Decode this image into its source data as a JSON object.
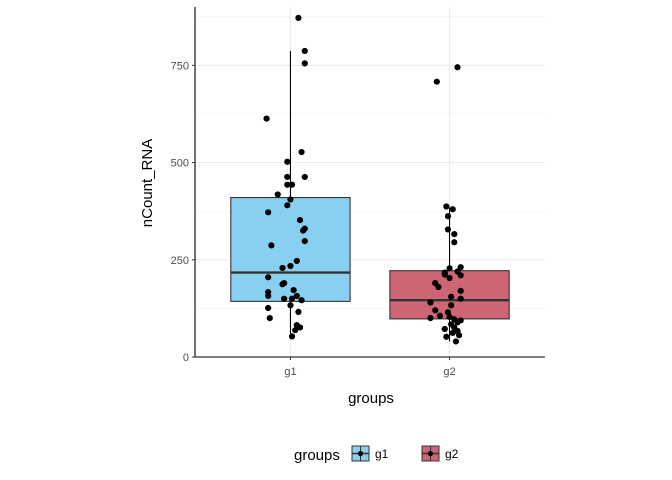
{
  "chart_data": {
    "type": "box",
    "xlabel": "groups",
    "ylabel": "nCount_RNA",
    "categories": [
      "g1",
      "g2"
    ],
    "ylim": [
      0,
      900
    ],
    "yticks": [
      0,
      250,
      500,
      750
    ],
    "grid": true,
    "legend": {
      "title": "groups",
      "position": "bottom",
      "entries": [
        {
          "label": "g1",
          "color": "#89CFF0"
        },
        {
          "label": "g2",
          "color": "#CD6574"
        }
      ]
    },
    "series": [
      {
        "category": "g1",
        "fill": "#89CFF0",
        "box": {
          "q1": 143,
          "median": 217,
          "q3": 410,
          "whisker_low": 53,
          "whisker_high": 787
        },
        "points": [
          {
            "x": 1.05,
            "y": 872
          },
          {
            "x": 1.09,
            "y": 787
          },
          {
            "x": 1.09,
            "y": 755
          },
          {
            "x": 0.85,
            "y": 613
          },
          {
            "x": 1.07,
            "y": 527
          },
          {
            "x": 0.98,
            "y": 502
          },
          {
            "x": 0.98,
            "y": 463
          },
          {
            "x": 1.09,
            "y": 463
          },
          {
            "x": 0.98,
            "y": 443
          },
          {
            "x": 1.01,
            "y": 443
          },
          {
            "x": 0.92,
            "y": 418
          },
          {
            "x": 1.0,
            "y": 405
          },
          {
            "x": 0.98,
            "y": 390
          },
          {
            "x": 0.86,
            "y": 372
          },
          {
            "x": 1.06,
            "y": 352
          },
          {
            "x": 1.09,
            "y": 330
          },
          {
            "x": 1.08,
            "y": 325
          },
          {
            "x": 1.09,
            "y": 298
          },
          {
            "x": 0.88,
            "y": 287
          },
          {
            "x": 1.04,
            "y": 247
          },
          {
            "x": 1.0,
            "y": 234
          },
          {
            "x": 0.95,
            "y": 229
          },
          {
            "x": 0.86,
            "y": 205
          },
          {
            "x": 0.96,
            "y": 190
          },
          {
            "x": 0.95,
            "y": 187
          },
          {
            "x": 1.02,
            "y": 172
          },
          {
            "x": 0.86,
            "y": 167
          },
          {
            "x": 0.86,
            "y": 157
          },
          {
            "x": 1.04,
            "y": 157
          },
          {
            "x": 0.96,
            "y": 150
          },
          {
            "x": 1.01,
            "y": 150
          },
          {
            "x": 1.07,
            "y": 146
          },
          {
            "x": 1.0,
            "y": 133
          },
          {
            "x": 0.86,
            "y": 126
          },
          {
            "x": 1.05,
            "y": 116
          },
          {
            "x": 0.87,
            "y": 100
          },
          {
            "x": 1.04,
            "y": 82
          },
          {
            "x": 1.06,
            "y": 76
          },
          {
            "x": 1.03,
            "y": 69
          },
          {
            "x": 1.01,
            "y": 53
          }
        ]
      },
      {
        "category": "g2",
        "fill": "#CD6574",
        "box": {
          "q1": 98,
          "median": 146,
          "q3": 222,
          "whisker_low": 40,
          "whisker_high": 384
        },
        "points": [
          {
            "x": 2.05,
            "y": 745
          },
          {
            "x": 1.92,
            "y": 708
          },
          {
            "x": 1.98,
            "y": 387
          },
          {
            "x": 2.02,
            "y": 380
          },
          {
            "x": 1.99,
            "y": 362
          },
          {
            "x": 1.99,
            "y": 328
          },
          {
            "x": 2.03,
            "y": 316
          },
          {
            "x": 2.03,
            "y": 295
          },
          {
            "x": 2.07,
            "y": 231
          },
          {
            "x": 2.0,
            "y": 228
          },
          {
            "x": 2.05,
            "y": 220
          },
          {
            "x": 1.97,
            "y": 217
          },
          {
            "x": 1.97,
            "y": 212
          },
          {
            "x": 2.07,
            "y": 210
          },
          {
            "x": 2.0,
            "y": 203
          },
          {
            "x": 1.91,
            "y": 190
          },
          {
            "x": 1.93,
            "y": 180
          },
          {
            "x": 2.07,
            "y": 170
          },
          {
            "x": 2.01,
            "y": 155
          },
          {
            "x": 2.07,
            "y": 150
          },
          {
            "x": 1.88,
            "y": 140
          },
          {
            "x": 2.01,
            "y": 133
          },
          {
            "x": 1.91,
            "y": 120
          },
          {
            "x": 1.99,
            "y": 115
          },
          {
            "x": 1.94,
            "y": 106
          },
          {
            "x": 2.0,
            "y": 103
          },
          {
            "x": 1.88,
            "y": 100
          },
          {
            "x": 2.03,
            "y": 97
          },
          {
            "x": 2.07,
            "y": 94
          },
          {
            "x": 2.05,
            "y": 89
          },
          {
            "x": 2.01,
            "y": 84
          },
          {
            "x": 2.03,
            "y": 76
          },
          {
            "x": 1.97,
            "y": 72
          },
          {
            "x": 2.05,
            "y": 67
          },
          {
            "x": 2.02,
            "y": 62
          },
          {
            "x": 2.06,
            "y": 56
          },
          {
            "x": 1.98,
            "y": 52
          },
          {
            "x": 2.04,
            "y": 40
          }
        ]
      }
    ]
  }
}
